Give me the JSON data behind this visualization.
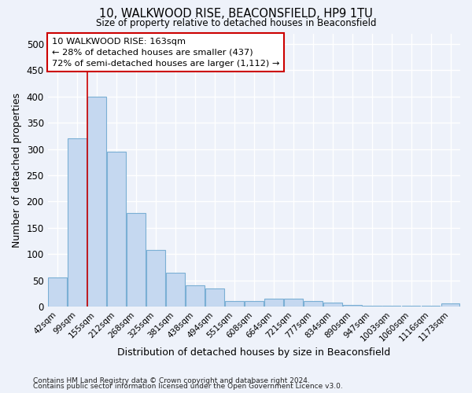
{
  "title1": "10, WALKWOOD RISE, BEACONSFIELD, HP9 1TU",
  "title2": "Size of property relative to detached houses in Beaconsfield",
  "xlabel": "Distribution of detached houses by size in Beaconsfield",
  "ylabel": "Number of detached properties",
  "categories": [
    "42sqm",
    "99sqm",
    "155sqm",
    "212sqm",
    "268sqm",
    "325sqm",
    "381sqm",
    "438sqm",
    "494sqm",
    "551sqm",
    "608sqm",
    "664sqm",
    "721sqm",
    "777sqm",
    "834sqm",
    "890sqm",
    "947sqm",
    "1003sqm",
    "1060sqm",
    "1116sqm",
    "1173sqm"
  ],
  "values": [
    55,
    320,
    400,
    295,
    178,
    108,
    65,
    40,
    35,
    10,
    10,
    15,
    15,
    10,
    7,
    3,
    2,
    1,
    1,
    1,
    6
  ],
  "bar_color": "#c5d8f0",
  "bar_edge_color": "#7aafd4",
  "vline_index": 2,
  "vline_color": "#cc0000",
  "annotation_line1": "10 WALKWOOD RISE: 163sqm",
  "annotation_line2": "← 28% of detached houses are smaller (437)",
  "annotation_line3": "72% of semi-detached houses are larger (1,112) →",
  "annotation_box_color": "#ffffff",
  "annotation_box_edge": "#cc0000",
  "ylim": [
    0,
    520
  ],
  "yticks": [
    0,
    50,
    100,
    150,
    200,
    250,
    300,
    350,
    400,
    450,
    500
  ],
  "footnote1": "Contains HM Land Registry data © Crown copyright and database right 2024.",
  "footnote2": "Contains public sector information licensed under the Open Government Licence v3.0.",
  "background_color": "#eef2fa",
  "grid_color": "#ffffff",
  "plot_bg_color": "#eef2fa"
}
